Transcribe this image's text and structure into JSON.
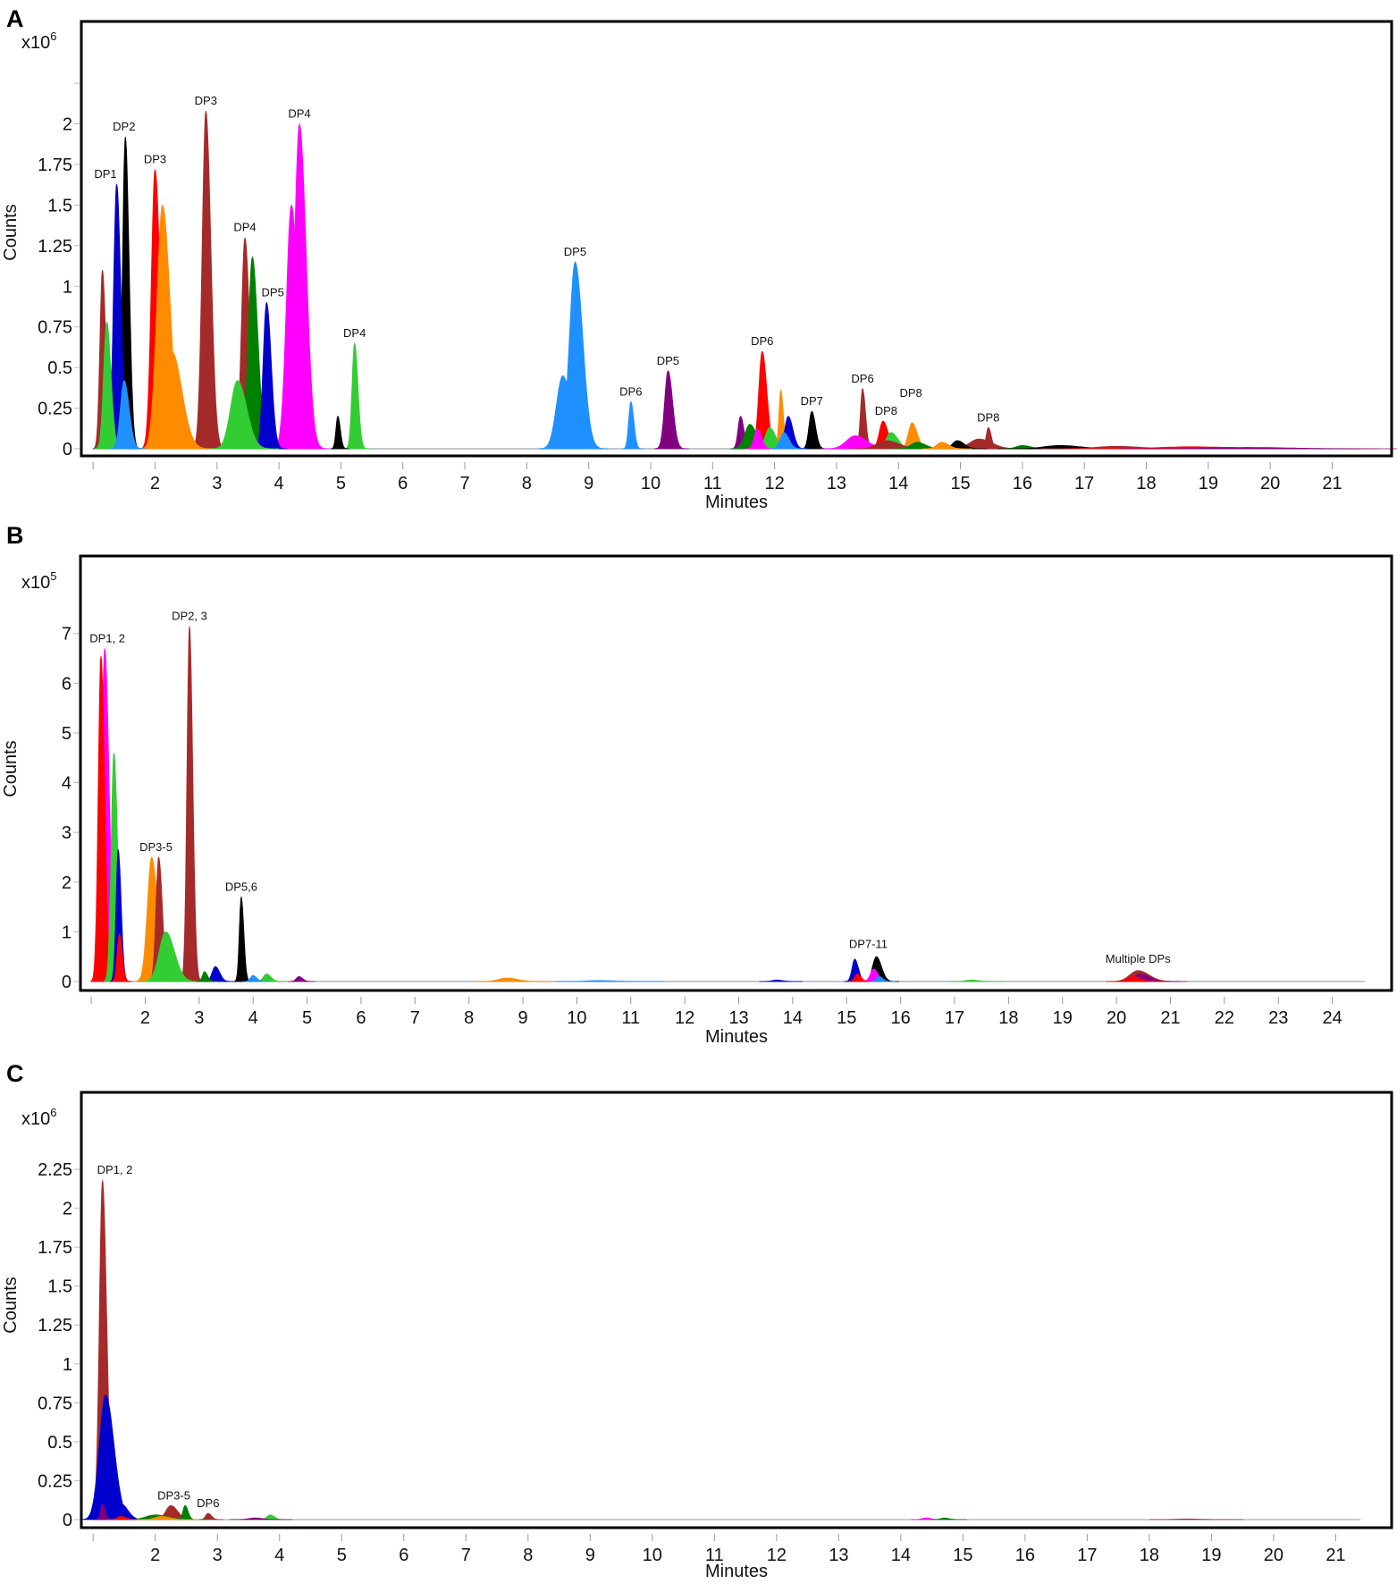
{
  "colors": {
    "brown": "#a52a2a",
    "blue": "#0000cd",
    "black": "#000000",
    "red": "#ff0000",
    "orange": "#ff8c00",
    "green": "#32cd32",
    "darkgreen": "#008000",
    "magenta": "#ff00ff",
    "skyblue": "#1e90ff",
    "purple": "#800080"
  },
  "chart_data": [
    {
      "panel": "A",
      "type": "area",
      "xlabel": "Minutes",
      "ylabel": "Counts",
      "multiplier": "x10",
      "exponent": "6",
      "xlim": [
        0.81,
        21.96
      ],
      "ylim": [
        -0.044,
        2.63
      ],
      "xticks": [
        1,
        2,
        3,
        4,
        5,
        6,
        7,
        8,
        9,
        10,
        11,
        12,
        13,
        14,
        15,
        16,
        17,
        18,
        19,
        20,
        21
      ],
      "xtick_labels": [
        "",
        "2",
        "3",
        "4",
        "5",
        "6",
        "7",
        "8",
        "9",
        "10",
        "11",
        "12",
        "13",
        "14",
        "15",
        "16",
        "17",
        "18",
        "19",
        "20",
        "21"
      ],
      "yticks": [
        0,
        0.25,
        0.5,
        0.75,
        1,
        1.25,
        1.5,
        1.75,
        2,
        2.25
      ],
      "ytick_labels": [
        "0",
        "0.25",
        "0.5",
        "0.75",
        "1",
        "1.25",
        "1.5",
        "1.75",
        "2",
        ""
      ],
      "peaks": [
        [
          1.15,
          1.1,
          0.04,
          "brown"
        ],
        [
          1.22,
          0.78,
          0.05,
          "green"
        ],
        [
          1.38,
          1.63,
          0.05,
          "blue"
        ],
        [
          1.52,
          1.92,
          0.045,
          "black"
        ],
        [
          1.5,
          0.42,
          0.06,
          "skyblue"
        ],
        [
          2.0,
          1.72,
          0.06,
          "red"
        ],
        [
          2.12,
          1.5,
          0.09,
          "orange"
        ],
        [
          2.27,
          0.6,
          0.12,
          "orange"
        ],
        [
          2.82,
          2.08,
          0.06,
          "brown"
        ],
        [
          3.33,
          0.42,
          0.11,
          "green"
        ],
        [
          3.45,
          1.3,
          0.055,
          "brown"
        ],
        [
          3.57,
          1.18,
          0.065,
          "darkgreen"
        ],
        [
          3.8,
          0.9,
          0.055,
          "blue"
        ],
        [
          4.2,
          1.5,
          0.08,
          "magenta"
        ],
        [
          4.33,
          2.0,
          0.08,
          "magenta"
        ],
        [
          4.95,
          0.2,
          0.03,
          "black"
        ],
        [
          5.22,
          0.65,
          0.04,
          "green"
        ],
        [
          8.58,
          0.45,
          0.1,
          "skyblue"
        ],
        [
          8.78,
          1.15,
          0.09,
          "skyblue"
        ],
        [
          9.68,
          0.29,
          0.035,
          "skyblue"
        ],
        [
          10.28,
          0.48,
          0.055,
          "purple"
        ],
        [
          11.45,
          0.2,
          0.04,
          "purple"
        ],
        [
          11.6,
          0.15,
          0.08,
          "darkgreen"
        ],
        [
          11.8,
          0.6,
          0.055,
          "red"
        ],
        [
          11.72,
          0.12,
          0.05,
          "magenta"
        ],
        [
          11.92,
          0.13,
          0.07,
          "green"
        ],
        [
          12.1,
          0.36,
          0.03,
          "orange"
        ],
        [
          12.22,
          0.2,
          0.055,
          "blue"
        ],
        [
          12.15,
          0.1,
          0.06,
          "skyblue"
        ],
        [
          12.6,
          0.23,
          0.045,
          "black"
        ],
        [
          13.3,
          0.08,
          0.14,
          "magenta"
        ],
        [
          13.42,
          0.37,
          0.035,
          "brown"
        ],
        [
          13.75,
          0.17,
          0.06,
          "red"
        ],
        [
          13.88,
          0.1,
          0.08,
          "green"
        ],
        [
          13.8,
          0.05,
          0.15,
          "brown"
        ],
        [
          14.22,
          0.16,
          0.06,
          "orange"
        ],
        [
          14.3,
          0.04,
          0.1,
          "darkgreen"
        ],
        [
          14.7,
          0.04,
          0.08,
          "orange"
        ],
        [
          14.95,
          0.05,
          0.08,
          "black"
        ],
        [
          15.3,
          0.06,
          0.15,
          "brown"
        ],
        [
          15.45,
          0.13,
          0.035,
          "brown"
        ],
        [
          16.0,
          0.02,
          0.1,
          "darkgreen"
        ],
        [
          16.6,
          0.02,
          0.25,
          "black"
        ],
        [
          17.5,
          0.015,
          0.3,
          "brown"
        ],
        [
          18.7,
          0.012,
          0.5,
          "red"
        ],
        [
          19.6,
          0.008,
          0.5,
          "purple"
        ]
      ],
      "annotations": [
        {
          "text": "DP1",
          "x": 1.2,
          "y": 1.63
        },
        {
          "text": "DP2",
          "x": 1.5,
          "y": 1.92
        },
        {
          "text": "DP3",
          "x": 2.0,
          "y": 1.72
        },
        {
          "text": "DP3",
          "x": 2.82,
          "y": 2.08
        },
        {
          "text": "DP4",
          "x": 3.45,
          "y": 1.3
        },
        {
          "text": "DP5",
          "x": 3.9,
          "y": 0.9
        },
        {
          "text": "DP4",
          "x": 4.33,
          "y": 2.0
        },
        {
          "text": "DP4",
          "x": 5.22,
          "y": 0.65
        },
        {
          "text": "DP5",
          "x": 8.78,
          "y": 1.15
        },
        {
          "text": "DP6",
          "x": 9.68,
          "y": 0.29
        },
        {
          "text": "DP5",
          "x": 10.28,
          "y": 0.48
        },
        {
          "text": "DP6",
          "x": 11.8,
          "y": 0.6
        },
        {
          "text": "DP7",
          "x": 12.6,
          "y": 0.23
        },
        {
          "text": "DP6",
          "x": 13.42,
          "y": 0.37
        },
        {
          "text": "DP8",
          "x": 13.8,
          "y": 0.17
        },
        {
          "text": "DP8",
          "x": 14.2,
          "y": 0.28
        },
        {
          "text": "DP8",
          "x": 15.45,
          "y": 0.13
        }
      ]
    },
    {
      "panel": "B",
      "type": "area",
      "xlabel": "Minutes",
      "ylabel": "Counts",
      "multiplier": "x10",
      "exponent": "5",
      "xlim": [
        0.8,
        25.1
      ],
      "ylim": [
        -0.18,
        8.56
      ],
      "xticks": [
        1,
        2,
        3,
        4,
        5,
        6,
        7,
        8,
        9,
        10,
        11,
        12,
        13,
        14,
        15,
        16,
        17,
        18,
        19,
        20,
        21,
        22,
        23,
        24
      ],
      "xtick_labels": [
        "",
        "2",
        "3",
        "4",
        "5",
        "6",
        "7",
        "8",
        "9",
        "10",
        "11",
        "12",
        "13",
        "14",
        "15",
        "16",
        "17",
        "18",
        "19",
        "20",
        "21",
        "22",
        "23",
        "24"
      ],
      "yticks": [
        0,
        1,
        2,
        3,
        4,
        5,
        6,
        7
      ],
      "ytick_labels": [
        "0",
        "1",
        "2",
        "3",
        "4",
        "5",
        "6",
        "7"
      ],
      "peaks": [
        [
          1.18,
          6.55,
          0.05,
          "red"
        ],
        [
          1.25,
          6.7,
          0.06,
          "magenta"
        ],
        [
          1.42,
          4.6,
          0.05,
          "green"
        ],
        [
          1.5,
          2.65,
          0.04,
          "blue"
        ],
        [
          1.52,
          0.95,
          0.04,
          "red"
        ],
        [
          2.12,
          2.5,
          0.08,
          "orange"
        ],
        [
          2.25,
          2.5,
          0.05,
          "brown"
        ],
        [
          2.38,
          1.0,
          0.12,
          "green"
        ],
        [
          2.82,
          7.15,
          0.045,
          "brown"
        ],
        [
          3.1,
          0.2,
          0.04,
          "darkgreen"
        ],
        [
          3.3,
          0.3,
          0.06,
          "blue"
        ],
        [
          3.78,
          1.7,
          0.035,
          "black"
        ],
        [
          4.0,
          0.12,
          0.05,
          "skyblue"
        ],
        [
          4.25,
          0.15,
          0.06,
          "green"
        ],
        [
          4.85,
          0.1,
          0.05,
          "purple"
        ],
        [
          8.7,
          0.07,
          0.15,
          "orange"
        ],
        [
          10.4,
          0.02,
          0.2,
          "skyblue"
        ],
        [
          13.7,
          0.03,
          0.08,
          "blue"
        ],
        [
          15.15,
          0.45,
          0.05,
          "blue"
        ],
        [
          15.2,
          0.15,
          0.05,
          "red"
        ],
        [
          15.55,
          0.5,
          0.07,
          "black"
        ],
        [
          15.5,
          0.25,
          0.06,
          "magenta"
        ],
        [
          15.6,
          0.1,
          0.05,
          "skyblue"
        ],
        [
          17.3,
          0.03,
          0.1,
          "green"
        ],
        [
          20.4,
          0.22,
          0.15,
          "brown"
        ],
        [
          20.45,
          0.15,
          0.12,
          "purple"
        ],
        [
          20.3,
          0.1,
          0.1,
          "red"
        ]
      ],
      "annotations": [
        {
          "text": "DP1, 2",
          "x": 1.3,
          "y": 6.7
        },
        {
          "text": "DP2, 3",
          "x": 2.82,
          "y": 7.15
        },
        {
          "text": "DP3-5",
          "x": 2.2,
          "y": 2.5
        },
        {
          "text": "DP5,6",
          "x": 3.78,
          "y": 1.7
        },
        {
          "text": "DP7-11",
          "x": 15.4,
          "y": 0.55
        },
        {
          "text": "Multiple DPs",
          "x": 20.4,
          "y": 0.25
        }
      ]
    },
    {
      "panel": "C",
      "type": "area",
      "xlabel": "Minutes",
      "ylabel": "Counts",
      "multiplier": "x10",
      "exponent": "6",
      "xlim": [
        0.81,
        21.9
      ],
      "ylim": [
        -0.052,
        2.744
      ],
      "xticks": [
        1,
        2,
        3,
        4,
        5,
        6,
        7,
        8,
        9,
        10,
        11,
        12,
        13,
        14,
        15,
        16,
        17,
        18,
        19,
        20,
        21
      ],
      "xtick_labels": [
        "",
        "2",
        "3",
        "4",
        "5",
        "6",
        "7",
        "8",
        "9",
        "10",
        "11",
        "12",
        "13",
        "14",
        "15",
        "16",
        "17",
        "18",
        "19",
        "20",
        "21"
      ],
      "yticks": [
        0,
        0.25,
        0.5,
        0.75,
        1,
        1.25,
        1.5,
        1.75,
        2,
        2.25
      ],
      "ytick_labels": [
        "0",
        "0.25",
        "0.5",
        "0.75",
        "1",
        "1.25",
        "1.5",
        "1.75",
        "2",
        "2.25"
      ],
      "peaks": [
        [
          1.15,
          2.18,
          0.05,
          "brown"
        ],
        [
          1.2,
          0.8,
          0.1,
          "blue"
        ],
        [
          1.45,
          0.1,
          0.08,
          "blue"
        ],
        [
          1.15,
          0.1,
          0.03,
          "purple"
        ],
        [
          1.45,
          0.02,
          0.06,
          "red"
        ],
        [
          2.0,
          0.03,
          0.15,
          "darkgreen"
        ],
        [
          2.1,
          0.02,
          0.1,
          "orange"
        ],
        [
          2.25,
          0.09,
          0.08,
          "brown"
        ],
        [
          2.48,
          0.09,
          0.035,
          "darkgreen"
        ],
        [
          2.85,
          0.04,
          0.04,
          "brown"
        ],
        [
          3.6,
          0.01,
          0.1,
          "purple"
        ],
        [
          3.85,
          0.03,
          0.05,
          "green"
        ],
        [
          14.4,
          0.01,
          0.06,
          "magenta"
        ],
        [
          14.7,
          0.01,
          0.06,
          "darkgreen"
        ],
        [
          18.6,
          0.004,
          0.15,
          "brown"
        ]
      ],
      "annotations": [
        {
          "text": "DP1, 2",
          "x": 1.35,
          "y": 2.18
        },
        {
          "text": "DP3-5",
          "x": 2.3,
          "y": 0.09
        },
        {
          "text": "DP6",
          "x": 2.85,
          "y": 0.04
        }
      ]
    }
  ]
}
